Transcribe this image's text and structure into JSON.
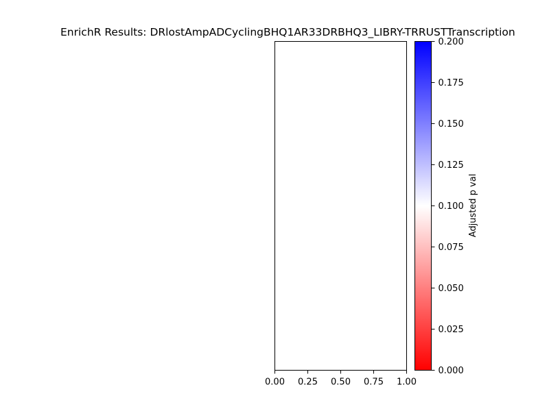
{
  "chart_data": {
    "type": "bar",
    "title": "EnrichR Results: DRlostAmpADCyclingBHQ1AR33DRBHQ3_LIBRY-TRRUSTTranscription",
    "categories": [],
    "values": [],
    "xlim": [
      0,
      1
    ],
    "x_ticks": [
      "0.00",
      "0.25",
      "0.50",
      "0.75",
      "1.00"
    ],
    "x_tick_values": [
      0,
      0.25,
      0.5,
      0.75,
      1.0
    ],
    "grid": false,
    "colorbar": {
      "label": "Adjusted p val",
      "range": [
        0,
        0.2
      ],
      "ticks": [
        "0.000",
        "0.025",
        "0.050",
        "0.075",
        "0.100",
        "0.125",
        "0.150",
        "0.175",
        "0.200"
      ],
      "tick_values": [
        0,
        0.025,
        0.05,
        0.075,
        0.1,
        0.125,
        0.15,
        0.175,
        0.2
      ],
      "colors": [
        "#ff0000",
        "#ffffff",
        "#0000ff"
      ]
    }
  }
}
